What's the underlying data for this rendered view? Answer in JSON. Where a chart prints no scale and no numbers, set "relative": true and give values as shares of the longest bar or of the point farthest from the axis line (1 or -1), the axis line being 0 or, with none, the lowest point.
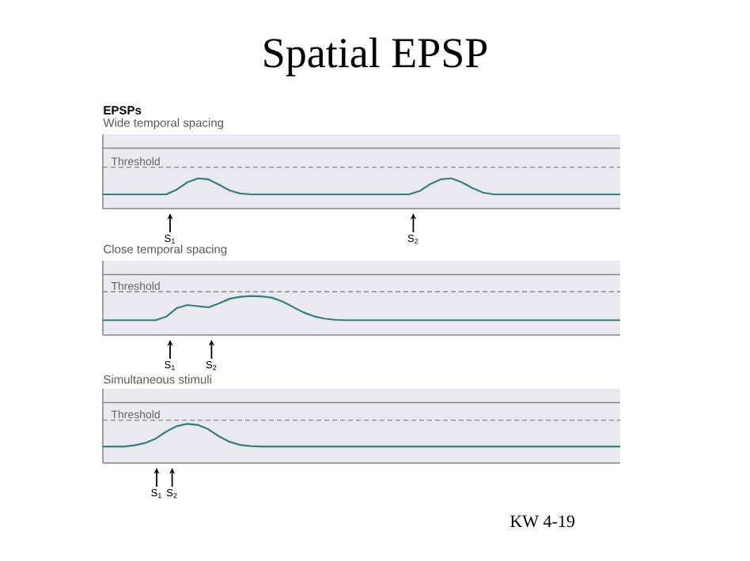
{
  "chart_data": [
    {
      "type": "line",
      "title": "Spatial EPSP",
      "subtitle": "Wide temporal spacing",
      "annotations": [
        "EPSPs",
        "S$_{1}$",
        "S$_{2}$"
      ],
      "relative": true,
      "tick_labels": false,
      "categories": [
        null,
        null,
        null,
        null,
        null,
        null,
        null,
        null,
        null,
        null,
        null,
        null,
        null,
        null,
        null,
        null,
        null,
        null,
        null,
        null,
        null,
        null,
        null,
        null,
        null,
        null,
        null,
        null,
        null,
        null,
        null,
        null,
        null,
        null,
        null,
        null,
        null,
        null,
        null,
        null,
        null,
        null,
        null,
        null,
        null,
        null,
        null,
        null,
        null,
        null
      ],
      "ref_lines": [
        {
          "axis": "y",
          "value": 2.0,
          "color": "#888888",
          "line_style": "solid"
        },
        {
          "axis": "y",
          "value": 1.37,
          "label": "Threshold",
          "color": "#888888",
          "line_style": "dashed"
        }
      ],
      "series": [
        {
          "color": "#3a7d7d",
          "values": [
            0.47,
            0.47,
            0.47,
            0.47,
            0.47,
            0.47,
            0.47,
            0.63,
            0.87,
            1,
            0.97,
            0.79,
            0.6,
            0.5,
            0.47,
            0.47,
            0.47,
            0.47,
            0.47,
            0.47,
            0.47,
            0.47,
            0.47,
            0.47,
            0.47,
            0.47,
            0.47,
            0.47,
            0.47,
            0.47,
            0.58,
            0.81,
            0.97,
            1,
            0.87,
            0.68,
            0.53,
            0.47,
            0.47,
            0.47,
            0.47,
            0.47,
            0.47,
            0.47,
            0.47,
            0.47,
            0.47,
            0.47,
            0.47,
            0.47
          ]
        }
      ]
    },
    {
      "type": "line",
      "subtitle": "Close temporal spacing",
      "annotations": [
        "S$_{1}$",
        "S$_{2}$"
      ],
      "relative": true,
      "tick_labels": false,
      "categories": [
        null,
        null,
        null,
        null,
        null,
        null,
        null,
        null,
        null,
        null,
        null,
        null,
        null,
        null,
        null,
        null,
        null,
        null,
        null,
        null,
        null,
        null,
        null,
        null,
        null,
        null,
        null,
        null,
        null,
        null,
        null,
        null,
        null,
        null,
        null,
        null,
        null,
        null,
        null,
        null,
        null,
        null,
        null,
        null,
        null,
        null,
        null,
        null,
        null,
        null
      ],
      "ref_lines": [
        {
          "axis": "y",
          "value": 1.55,
          "color": "#888888",
          "line_style": "solid"
        },
        {
          "axis": "y",
          "value": 1.11,
          "label": "Threshold",
          "color": "#888888",
          "line_style": "dashed"
        }
      ],
      "series": [
        {
          "color": "#3a7d7d",
          "values": [
            0.38,
            0.38,
            0.38,
            0.38,
            0.38,
            0.38,
            0.47,
            0.69,
            0.77,
            0.74,
            0.71,
            0.81,
            0.93,
            0.98,
            1,
            0.99,
            0.96,
            0.86,
            0.72,
            0.58,
            0.48,
            0.42,
            0.39,
            0.38,
            0.38,
            0.38,
            0.38,
            0.38,
            0.38,
            0.38,
            0.38,
            0.38,
            0.38,
            0.38,
            0.38,
            0.38,
            0.38,
            0.38,
            0.38,
            0.38,
            0.38,
            0.38,
            0.38,
            0.38,
            0.38,
            0.38,
            0.38,
            0.38,
            0.38,
            0.38
          ]
        }
      ]
    },
    {
      "type": "line",
      "subtitle": "Simultaneous stimuli",
      "annotations": [
        "S$_{1}$",
        "S$_{2}$",
        "KW 4-19"
      ],
      "relative": true,
      "tick_labels": false,
      "categories": [
        null,
        null,
        null,
        null,
        null,
        null,
        null,
        null,
        null,
        null,
        null,
        null,
        null,
        null,
        null,
        null,
        null,
        null,
        null,
        null,
        null,
        null,
        null,
        null,
        null,
        null,
        null,
        null,
        null,
        null,
        null,
        null,
        null,
        null,
        null,
        null,
        null,
        null,
        null,
        null,
        null,
        null,
        null,
        null,
        null,
        null,
        null,
        null,
        null,
        null
      ],
      "ref_lines": [
        {
          "axis": "y",
          "value": 1.54,
          "color": "#888888",
          "line_style": "solid"
        },
        {
          "axis": "y",
          "value": 1.09,
          "label": "Threshold",
          "color": "#888888",
          "line_style": "dashed"
        }
      ],
      "series": [
        {
          "color": "#3a7d7d",
          "values": [
            0.42,
            0.42,
            0.42,
            0.45,
            0.51,
            0.62,
            0.8,
            0.94,
            1,
            0.97,
            0.86,
            0.68,
            0.54,
            0.46,
            0.43,
            0.42,
            0.42,
            0.42,
            0.42,
            0.42,
            0.42,
            0.42,
            0.42,
            0.42,
            0.42,
            0.42,
            0.42,
            0.42,
            0.42,
            0.42,
            0.42,
            0.42,
            0.42,
            0.42,
            0.42,
            0.42,
            0.42,
            0.42,
            0.42,
            0.42,
            0.42,
            0.42,
            0.42,
            0.42,
            0.42,
            0.42,
            0.42,
            0.42,
            0.42,
            0.42
          ]
        }
      ]
    }
  ]
}
